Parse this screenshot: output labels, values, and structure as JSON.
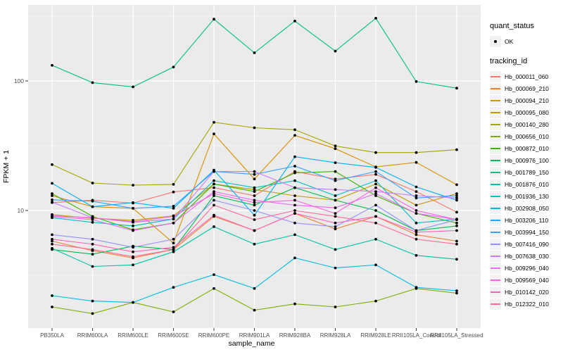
{
  "chart_data": {
    "type": "line",
    "title": "",
    "xlabel": "sample_name",
    "ylabel": "FPKM + 1",
    "y_scale": "log10",
    "y_major_ticks": [
      10,
      100
    ],
    "y_minor_gridlines": [
      3.162,
      31.62,
      316.2
    ],
    "ylim": [
      1.24,
      386
    ],
    "grid": "on",
    "legend_position": "right",
    "marker": {
      "shape": "point",
      "color": "#000000",
      "legend_label": "OK"
    },
    "categories": [
      "PB350LA",
      "RRIM600LA",
      "RRIM600LE",
      "RRIM600SE",
      "RRIM600PE",
      "RRIM901LA",
      "RRIM928BA",
      "RRIM928LA",
      "RRIM928LE",
      "RRII105LA_Control",
      "RRII105LA_Stressed"
    ],
    "series": [
      {
        "name": "Hb_000011_060",
        "color": "#F8766D",
        "values": [
          11.5,
          12.0,
          11.4,
          13.9,
          15,
          13,
          20,
          17.5,
          19,
          14,
          9.7
        ]
      },
      {
        "name": "Hb_000069_210",
        "color": "#EA8331",
        "values": [
          5.8,
          4.9,
          4.3,
          5.0,
          9.0,
          7.0,
          9.5,
          7.2,
          9.0,
          6.5,
          5.8
        ]
      },
      {
        "name": "Hb_000094_210",
        "color": "#D89000",
        "values": [
          13.0,
          10.7,
          10.4,
          5.6,
          39,
          17.5,
          38,
          30,
          21.7,
          23.5,
          15.8
        ]
      },
      {
        "name": "Hb_000095_080",
        "color": "#C49A00",
        "values": [
          9.3,
          8.7,
          8.4,
          9.1,
          16,
          14.5,
          13,
          12,
          16,
          11,
          13.5
        ]
      },
      {
        "name": "Hb_000140_280",
        "color": "#A3A500",
        "values": [
          22.6,
          16.3,
          15.7,
          15.9,
          48,
          43.5,
          42,
          31.5,
          28,
          28,
          29.5
        ]
      },
      {
        "name": "Hb_000656_010",
        "color": "#7CAE00",
        "values": [
          1.8,
          1.6,
          1.95,
          1.65,
          2.5,
          1.7,
          1.9,
          1.8,
          2.0,
          2.5,
          2.3
        ]
      },
      {
        "name": "Hb_000872_010",
        "color": "#39B600",
        "values": [
          13.5,
          9.0,
          7.1,
          8.0,
          16,
          14,
          19.5,
          20,
          13,
          9.5,
          8.0
        ]
      },
      {
        "name": "Hb_000976_100",
        "color": "#00BB4E",
        "values": [
          5.0,
          4.6,
          5.3,
          5.0,
          13,
          11,
          15,
          12,
          10,
          7.0,
          7.6
        ]
      },
      {
        "name": "Hb_001789_150",
        "color": "#00BF7D",
        "values": [
          132,
          97,
          90,
          128,
          300,
          165,
          290,
          170,
          305,
          99,
          88
        ]
      },
      {
        "name": "Hb_001876_010",
        "color": "#00C1A3",
        "values": [
          5.1,
          3.7,
          3.8,
          4.8,
          7.5,
          5.5,
          6.5,
          5.0,
          6.0,
          4.5,
          4.2
        ]
      },
      {
        "name": "Hb_001936_130",
        "color": "#00BFC4",
        "values": [
          8.8,
          8.1,
          7.6,
          8.6,
          17,
          15,
          17,
          13,
          17,
          8.0,
          8.6
        ]
      },
      {
        "name": "Hb_002908_050",
        "color": "#00BAE0",
        "values": [
          2.2,
          2.0,
          1.95,
          2.55,
          3.2,
          2.5,
          4.3,
          3.6,
          3.8,
          2.55,
          2.4
        ]
      },
      {
        "name": "Hb_003206_110",
        "color": "#00B0F6",
        "values": [
          16.2,
          10.7,
          11.5,
          10.4,
          20.5,
          9.2,
          26,
          23.4,
          21.5,
          15.2,
          12
        ]
      },
      {
        "name": "Hb_003994_150",
        "color": "#35A2FF",
        "values": [
          12.1,
          11.8,
          10.4,
          10.8,
          20,
          19,
          22,
          17,
          20,
          12.5,
          13
        ]
      },
      {
        "name": "Hb_007416_090",
        "color": "#9590FF",
        "values": [
          6.5,
          6.0,
          5.2,
          6.0,
          12,
          10,
          8.0,
          7.5,
          11,
          7.0,
          8.5
        ]
      },
      {
        "name": "Hb_007638_030",
        "color": "#C77CFF",
        "values": [
          11.6,
          8.8,
          8.1,
          8.6,
          20,
          20,
          15,
          14.5,
          14,
          13,
          12.5
        ]
      },
      {
        "name": "Hb_009296_040",
        "color": "#E76BF3",
        "values": [
          9.0,
          8.5,
          7.0,
          8.0,
          14,
          12,
          11,
          10.5,
          13.5,
          9.5,
          8.5
        ]
      },
      {
        "name": "Hb_009569_040",
        "color": "#FA62DB",
        "values": [
          9.1,
          8.8,
          8.2,
          9.0,
          13.5,
          11.5,
          12,
          9.5,
          15,
          10,
          8.5
        ]
      },
      {
        "name": "Hb_010142_020",
        "color": "#FF62BC",
        "values": [
          6.0,
          5.5,
          4.8,
          5.2,
          9.2,
          7.0,
          9.5,
          8.0,
          9.0,
          6.8,
          7.0
        ]
      },
      {
        "name": "Hb_012322_010",
        "color": "#FF6A98",
        "values": [
          5.5,
          5.0,
          4.4,
          5.0,
          11,
          8.5,
          10,
          9.0,
          8.0,
          6.0,
          5.5
        ]
      }
    ]
  },
  "legend": {
    "quant_title": "quant_status",
    "quant_ok_label": "OK",
    "tracking_title": "tracking_id"
  },
  "axes": {
    "x_title": "sample_name",
    "y_title": "FPKM + 1",
    "y_tick_labels": [
      "100",
      "10"
    ]
  },
  "colors": {
    "panel_bg": "#EBEBEB",
    "grid": "#FFFFFF",
    "legend_key_bg": "#F2F2F2",
    "tick_label": "#4D4D4D",
    "axis_title": "#000000",
    "marker": "#000000"
  }
}
